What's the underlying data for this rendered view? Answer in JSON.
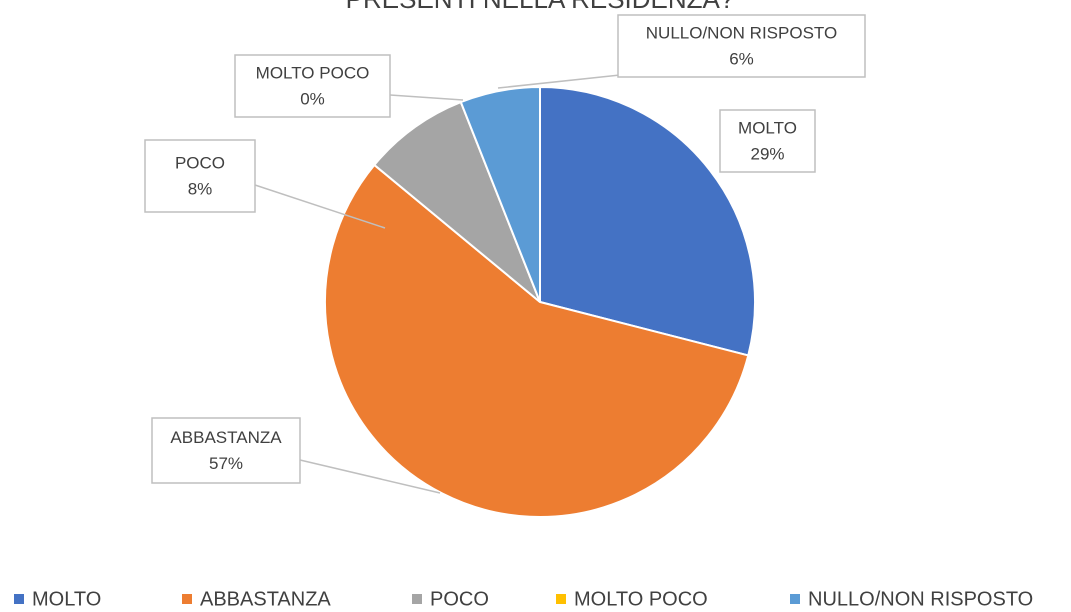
{
  "chart_data": {
    "type": "pie",
    "title": "PRESENTI NELLA RESIDENZA?",
    "categories": [
      "MOLTO",
      "ABBASTANZA",
      "POCO",
      "MOLTO POCO",
      "NULLO/NON RISPOSTO"
    ],
    "values": [
      29,
      57,
      8,
      0,
      6
    ],
    "value_labels": [
      "29%",
      "57%",
      "8%",
      "0%",
      "6%"
    ],
    "colors": [
      "#4472c4",
      "#ed7d31",
      "#a5a5a5",
      "#ffc000",
      "#5b9bd5"
    ],
    "legend": "bottom"
  }
}
